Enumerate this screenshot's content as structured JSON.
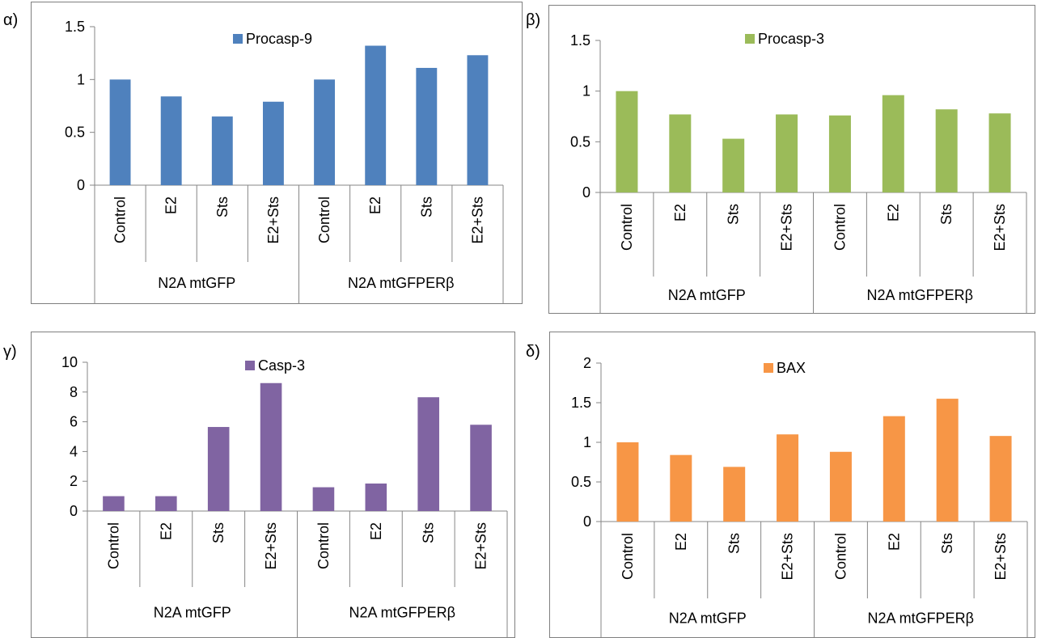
{
  "panels": [
    {
      "label": "α)"
    },
    {
      "label": "β)"
    },
    {
      "label": "γ)"
    },
    {
      "label": "δ)"
    }
  ],
  "chart_data": [
    {
      "type": "bar",
      "panel": "α)",
      "categories": [
        "Control",
        "E2",
        "Sts",
        "E2+Sts",
        "Control",
        "E2",
        "Sts",
        "E2+Sts"
      ],
      "groups": [
        {
          "label": "N2A mtGFP",
          "span": 4
        },
        {
          "label": "N2A mtGFPERβ",
          "span": 4
        }
      ],
      "series": [
        {
          "name": "Procasp-9",
          "values": [
            1.0,
            0.84,
            0.65,
            0.79,
            1.0,
            1.32,
            1.11,
            1.23
          ]
        }
      ],
      "color": "#4F81BD",
      "ylim": [
        0,
        1.5
      ],
      "yticks": [
        0,
        0.5,
        1,
        1.5
      ],
      "grid": false,
      "legend": "top"
    },
    {
      "type": "bar",
      "panel": "β)",
      "categories": [
        "Control",
        "E2",
        "Sts",
        "E2+Sts",
        "Control",
        "E2",
        "Sts",
        "E2+Sts"
      ],
      "groups": [
        {
          "label": "N2A mtGFP",
          "span": 4
        },
        {
          "label": "N2A mtGFPERβ",
          "span": 4
        }
      ],
      "series": [
        {
          "name": "Procasp-3",
          "values": [
            1.0,
            0.77,
            0.53,
            0.77,
            0.76,
            0.96,
            0.82,
            0.78
          ]
        }
      ],
      "color": "#9BBB59",
      "ylim": [
        0,
        1.5
      ],
      "yticks": [
        0,
        0.5,
        1,
        1.5
      ],
      "grid": false,
      "legend": "top"
    },
    {
      "type": "bar",
      "panel": "γ)",
      "categories": [
        "Control",
        "E2",
        "Sts",
        "E2+Sts",
        "Control",
        "E2",
        "Sts",
        "E2+Sts"
      ],
      "groups": [
        {
          "label": "N2A mtGFP",
          "span": 4
        },
        {
          "label": "N2A mtGFPERβ",
          "span": 4
        }
      ],
      "series": [
        {
          "name": "Casp-3",
          "values": [
            1.0,
            1.0,
            5.65,
            8.6,
            1.6,
            1.85,
            7.65,
            5.8
          ]
        }
      ],
      "color": "#8064A2",
      "ylim": [
        0,
        10
      ],
      "yticks": [
        0,
        2,
        4,
        6,
        8,
        10
      ],
      "grid": false,
      "legend": "top"
    },
    {
      "type": "bar",
      "panel": "δ)",
      "categories": [
        "Control",
        "E2",
        "Sts",
        "E2+Sts",
        "Control",
        "E2",
        "Sts",
        "E2+Sts"
      ],
      "groups": [
        {
          "label": "N2A mtGFP",
          "span": 4
        },
        {
          "label": "N2A mtGFPERβ",
          "span": 4
        }
      ],
      "series": [
        {
          "name": "BAX",
          "values": [
            1.0,
            0.84,
            0.69,
            1.1,
            0.88,
            1.33,
            1.55,
            1.08
          ]
        }
      ],
      "color": "#F79646",
      "ylim": [
        0,
        2
      ],
      "yticks": [
        0,
        0.5,
        1,
        1.5,
        2
      ],
      "grid": false,
      "legend": "top"
    }
  ]
}
